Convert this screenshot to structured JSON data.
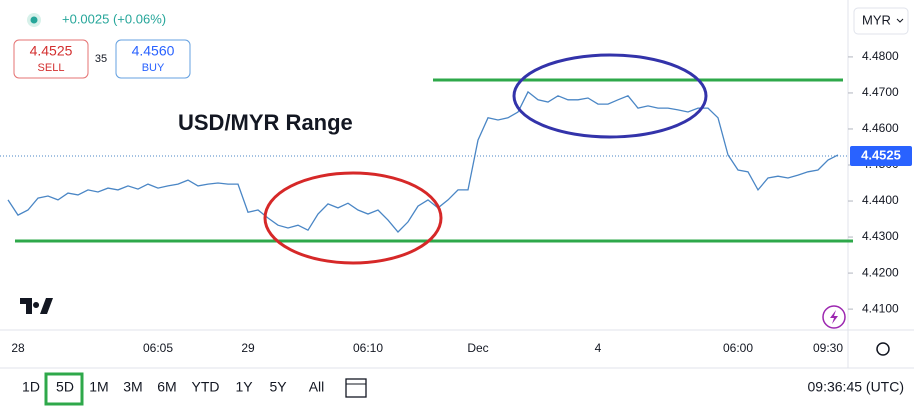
{
  "header": {
    "change": "+0.0025 (+0.06%)",
    "sell_price": "4.4525",
    "sell_label": "SELL",
    "spread": "35",
    "buy_price": "4.4560",
    "buy_label": "BUY",
    "currency": "MYR"
  },
  "toolbar": {
    "ranges": [
      "1D",
      "5D",
      "1M",
      "3M",
      "6M",
      "YTD",
      "1Y",
      "5Y",
      "All"
    ],
    "active": "5D",
    "clock": "09:36:45 (UTC)"
  },
  "chart_data": {
    "type": "line",
    "title": "USD/MYR Range",
    "categories": [
      null,
      "28",
      null,
      null,
      null,
      null,
      null,
      null,
      null,
      null,
      null,
      null,
      null,
      null,
      null,
      "06:05",
      null,
      null,
      null,
      null,
      null,
      null,
      null,
      null,
      "29",
      null,
      null,
      null,
      null,
      null,
      null,
      null,
      null,
      null,
      null,
      null,
      "06:10",
      null,
      null,
      null,
      null,
      null,
      null,
      null,
      null,
      null,
      null,
      "Dec",
      null,
      null,
      null,
      null,
      null,
      null,
      null,
      null,
      null,
      null,
      null,
      "4",
      null,
      null,
      null,
      null,
      null,
      null,
      null,
      null,
      null,
      null,
      null,
      null,
      null,
      "06:00",
      null,
      null,
      null,
      null,
      null,
      null,
      null,
      null,
      "09:30",
      null
    ],
    "series": [
      {
        "name": "USD/MYR",
        "color": "#4a86c5",
        "values": [
          4.4403,
          4.4361,
          4.4375,
          4.4408,
          4.4414,
          4.4403,
          4.4422,
          4.4417,
          4.4431,
          4.4425,
          4.4436,
          4.4431,
          4.4442,
          4.4433,
          4.4447,
          4.4436,
          4.4442,
          4.4447,
          4.4458,
          4.4442,
          4.4447,
          4.445,
          4.4447,
          4.4447,
          4.4369,
          4.4375,
          4.4353,
          4.4333,
          4.4325,
          4.4333,
          4.4319,
          4.4364,
          4.4392,
          4.4381,
          4.4394,
          4.4375,
          4.4364,
          4.4375,
          4.4347,
          4.4314,
          4.4342,
          4.4386,
          4.4403,
          4.4381,
          4.4403,
          4.4431,
          4.4431,
          4.4569,
          4.4631,
          4.4625,
          4.4631,
          4.4647,
          4.4703,
          4.4681,
          4.4675,
          4.4692,
          4.4681,
          4.4681,
          4.4686,
          4.4669,
          4.4669,
          4.4681,
          4.4692,
          4.4658,
          4.4664,
          4.4658,
          4.4658,
          4.4653,
          4.4647,
          4.4658,
          4.4658,
          4.4631,
          4.4528,
          4.4486,
          4.4481,
          4.4431,
          4.4464,
          4.4469,
          4.4464,
          4.4472,
          4.4481,
          4.4486,
          4.4514,
          4.4528
        ]
      }
    ],
    "ylim": [
      4.4042,
      4.4958
    ],
    "yticks": [
      {
        "value": 4.41,
        "label": "4.4100"
      },
      {
        "value": 4.42,
        "label": "4.4200"
      },
      {
        "value": 4.43,
        "label": "4.4300"
      },
      {
        "value": 4.44,
        "label": "4.4400"
      },
      {
        "value": 4.45,
        "label": "4.4500"
      },
      {
        "value": 4.46,
        "label": "4.4600"
      },
      {
        "value": 4.47,
        "label": "4.4700"
      },
      {
        "value": 4.48,
        "label": "4.4800"
      }
    ],
    "last_price": 4.4525,
    "hlines": [
      {
        "value": 4.4736,
        "color": "#2ea84a"
      },
      {
        "value": 4.4289,
        "color": "#2ea84a"
      }
    ]
  }
}
